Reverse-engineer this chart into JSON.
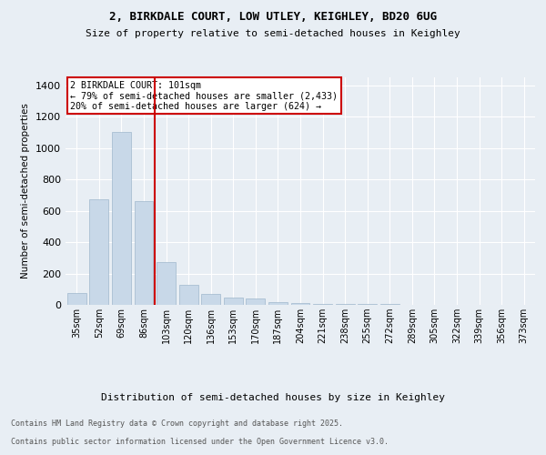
{
  "title1": "2, BIRKDALE COURT, LOW UTLEY, KEIGHLEY, BD20 6UG",
  "title2": "Size of property relative to semi-detached houses in Keighley",
  "xlabel": "Distribution of semi-detached houses by size in Keighley",
  "ylabel": "Number of semi-detached properties",
  "categories": [
    "35sqm",
    "52sqm",
    "69sqm",
    "86sqm",
    "103sqm",
    "120sqm",
    "136sqm",
    "153sqm",
    "170sqm",
    "187sqm",
    "204sqm",
    "221sqm",
    "238sqm",
    "255sqm",
    "272sqm",
    "289sqm",
    "305sqm",
    "322sqm",
    "339sqm",
    "356sqm",
    "373sqm"
  ],
  "values": [
    75,
    670,
    1100,
    660,
    270,
    130,
    70,
    45,
    40,
    20,
    10,
    5,
    5,
    3,
    3,
    2,
    2,
    1,
    1,
    1,
    1
  ],
  "bar_color": "#c8d8e8",
  "bar_edge_color": "#a0b8cc",
  "vline_color": "#cc0000",
  "vline_pos": 3.5,
  "annotation_title": "2 BIRKDALE COURT: 101sqm",
  "annotation_line1": "← 79% of semi-detached houses are smaller (2,433)",
  "annotation_line2": "20% of semi-detached houses are larger (624) →",
  "annotation_box_color": "#cc0000",
  "ylim": [
    0,
    1450
  ],
  "background_color": "#e8eef4",
  "plot_background": "#e8eef4",
  "footer1": "Contains HM Land Registry data © Crown copyright and database right 2025.",
  "footer2": "Contains public sector information licensed under the Open Government Licence v3.0."
}
